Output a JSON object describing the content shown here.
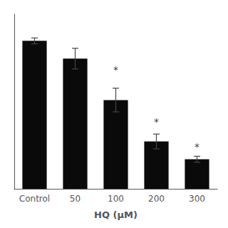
{
  "chart_data": {
    "type": "bar",
    "xlabel": "HQ (μM)",
    "categories": [
      "Control",
      "50",
      "100",
      "200",
      "300"
    ],
    "values": [
      100,
      88,
      60,
      32,
      20
    ],
    "errors": [
      2,
      7,
      8,
      5,
      2
    ],
    "color": "#0a0a0a",
    "ylim": [
      0,
      118
    ],
    "yticks": [],
    "grid": false,
    "tick_labels": "x",
    "annotations": [
      {
        "text": "*",
        "x": "100",
        "y": 77
      },
      {
        "text": "*",
        "x": "200",
        "y": 42
      },
      {
        "text": "*",
        "x": "300",
        "y": 25
      }
    ]
  }
}
